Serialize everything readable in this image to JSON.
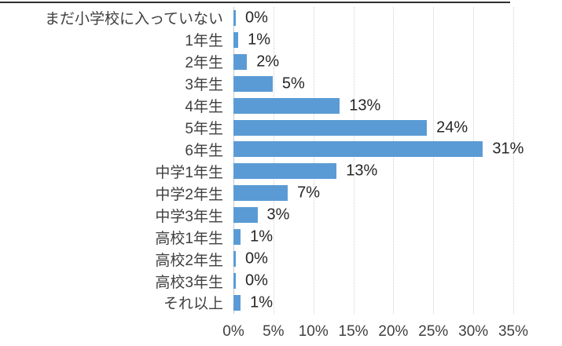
{
  "chart_data": {
    "type": "bar",
    "orientation": "horizontal",
    "title": "",
    "xlabel": "",
    "ylabel": "",
    "categories": [
      "まだ小学校に入っていない",
      "1年生",
      "2年生",
      "3年生",
      "4年生",
      "5年生",
      "6年生",
      "中学1年生",
      "中学2年生",
      "中学3年生",
      "高校1年生",
      "高校2年生",
      "高校3年生",
      "それ以上"
    ],
    "values": [
      0,
      1,
      2,
      5,
      13,
      24,
      31,
      13,
      7,
      3,
      1,
      0,
      0,
      1
    ],
    "value_labels": [
      "0%",
      "1%",
      "2%",
      "5%",
      "13%",
      "24%",
      "31%",
      "13%",
      "7%",
      "3%",
      "1%",
      "0%",
      "0%",
      "1%"
    ],
    "bar_render_pct": [
      0.3,
      0.6,
      1.7,
      4.9,
      13.3,
      24.2,
      31.2,
      12.9,
      6.8,
      3.0,
      0.9,
      0.3,
      0.3,
      0.9
    ],
    "x_ticks": [
      "0%",
      "5%",
      "10%",
      "15%",
      "20%",
      "25%",
      "30%",
      "35%"
    ],
    "x_tick_values": [
      0,
      5,
      10,
      15,
      20,
      25,
      30,
      35
    ],
    "xlim": [
      0,
      35
    ],
    "grid": "vertical-dotted",
    "legend": "none",
    "colors": {
      "bar": "#5b9bd5",
      "gridline": "#d0d0d0",
      "axis_line": "#c8c8c8",
      "category_label": "#3f3f3f",
      "value_label": "#262626",
      "tick_label": "#3f3f3f",
      "background": "#ffffff",
      "top_border": "#2e2e2e"
    }
  }
}
